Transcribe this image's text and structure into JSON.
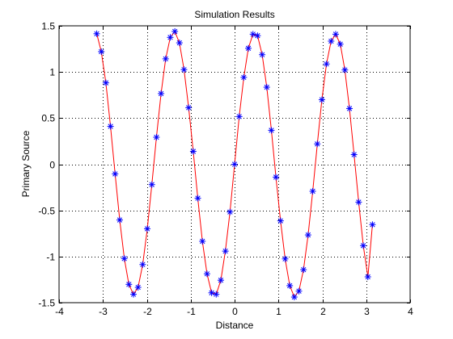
{
  "chart_data": {
    "type": "line",
    "title": "Simulation Results",
    "xlabel": "Distance",
    "ylabel": "Primary Source",
    "xlim": [
      -4,
      4
    ],
    "ylim": [
      -1.5,
      1.5
    ],
    "xticks": [
      "-4",
      "-3",
      "-2",
      "-1",
      "0",
      "1",
      "2",
      "3",
      "4"
    ],
    "yticks": [
      "-1.5",
      "-1",
      "-0.5",
      "0",
      "0.5",
      "1",
      "1.5"
    ],
    "grid": true,
    "legend": "none",
    "series": [
      {
        "line_color": "#ff0000",
        "marker_color": "#0000ff",
        "marker": "asterisk",
        "x": [
          -3.1416,
          -3.0369,
          -2.9322,
          -2.8274,
          -2.7227,
          -2.618,
          -2.5133,
          -2.4086,
          -2.3038,
          -2.1991,
          -2.0944,
          -1.9897,
          -1.885,
          -1.7802,
          -1.6755,
          -1.5708,
          -1.4661,
          -1.3614,
          -1.2566,
          -1.1519,
          -1.0472,
          -0.9425,
          -0.8378,
          -0.733,
          -0.6283,
          -0.5236,
          -0.4189,
          -0.3142,
          -0.2094,
          -0.1047,
          0.0,
          0.1047,
          0.2094,
          0.3142,
          0.4189,
          0.5236,
          0.6283,
          0.733,
          0.8378,
          0.9425,
          1.0472,
          1.1519,
          1.2566,
          1.3614,
          1.4661,
          1.5708,
          1.6755,
          1.7802,
          1.885,
          1.9897,
          2.0944,
          2.1991,
          2.3038,
          2.4086,
          2.5133,
          2.618,
          2.7227,
          2.8274,
          2.9322,
          3.0369,
          3.1416
        ],
        "y": [
          1.4142,
          1.2202,
          0.8819,
          0.4104,
          -0.1046,
          -0.604,
          -1.0218,
          -1.3015,
          -1.4093,
          -1.3341,
          -1.0868,
          -0.6991,
          -0.2205,
          0.2927,
          0.766,
          1.1423,
          1.375,
          1.4391,
          1.3158,
          1.0257,
          0.6131,
          0.1394,
          -0.3681,
          -0.8348,
          -1.1872,
          -1.3932,
          -1.4093,
          -1.2566,
          -0.9414,
          -0.5173,
          -0.0,
          0.5173,
          0.9414,
          1.2566,
          1.4093,
          1.3932,
          1.1872,
          0.8348,
          0.3681,
          -0.1394,
          -0.6131,
          -1.0257,
          -1.3158,
          -1.4391,
          -1.375,
          -1.1423,
          -0.766,
          -0.2927,
          0.2205,
          0.6991,
          1.0868,
          1.3341,
          1.4093,
          1.3015,
          1.0218,
          0.604,
          0.1046,
          -0.4104,
          -0.8819,
          -1.2202,
          -0.6541
        ]
      }
    ]
  }
}
